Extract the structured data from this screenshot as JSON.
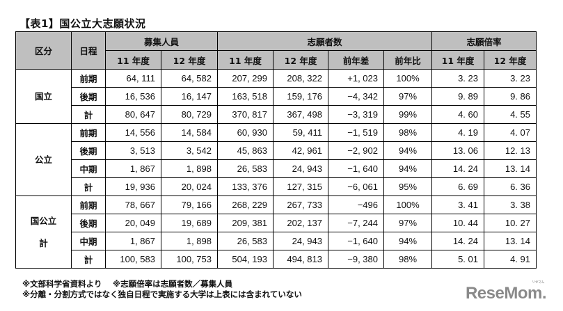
{
  "title": "【表1】国公立大志願状況",
  "table": {
    "headers": {
      "category": "区分",
      "schedule": "日程",
      "recruit": "募集人員",
      "applicants": "志願者数",
      "ratio": "志願倍率",
      "sub": {
        "recruit": [
          "11 年度",
          "12 年度"
        ],
        "applicants": [
          "11 年度",
          "12 年度",
          "前年差",
          "前年比"
        ],
        "ratio": [
          "11 年度",
          "12 年度"
        ]
      }
    },
    "groups": [
      {
        "category_lines": [
          "国立"
        ],
        "rows": [
          {
            "schedule": "前期",
            "r11": "64, 111",
            "r12": "64, 582",
            "a11": "207, 299",
            "a12": "208, 322",
            "diff": "+1, 023",
            "pct": "100%",
            "x11": "3. 23",
            "x12": "3. 23"
          },
          {
            "schedule": "後期",
            "r11": "16, 536",
            "r12": "16, 147",
            "a11": "163, 518",
            "a12": "159, 176",
            "diff": "−4, 342",
            "pct": "97%",
            "x11": "9. 89",
            "x12": "9. 86"
          },
          {
            "schedule": "計",
            "r11": "80, 647",
            "r12": "80, 729",
            "a11": "370, 817",
            "a12": "367, 498",
            "diff": "−3, 319",
            "pct": "99%",
            "x11": "4. 60",
            "x12": "4. 55"
          }
        ]
      },
      {
        "category_lines": [
          "公立"
        ],
        "rows": [
          {
            "schedule": "前期",
            "r11": "14, 556",
            "r12": "14, 584",
            "a11": "60, 930",
            "a12": "59, 411",
            "diff": "−1, 519",
            "pct": "98%",
            "x11": "4. 19",
            "x12": "4. 07"
          },
          {
            "schedule": "後期",
            "r11": "3, 513",
            "r12": "3, 542",
            "a11": "45, 863",
            "a12": "42, 961",
            "diff": "−2, 902",
            "pct": "94%",
            "x11": "13. 06",
            "x12": "12. 13"
          },
          {
            "schedule": "中期",
            "r11": "1, 867",
            "r12": "1, 898",
            "a11": "26, 583",
            "a12": "24, 943",
            "diff": "−1, 640",
            "pct": "94%",
            "x11": "14. 24",
            "x12": "13. 14"
          },
          {
            "schedule": "計",
            "r11": "19, 936",
            "r12": "20, 024",
            "a11": "133, 376",
            "a12": "127, 315",
            "diff": "−6, 061",
            "pct": "95%",
            "x11": "6. 69",
            "x12": "6. 36"
          }
        ]
      },
      {
        "category_lines": [
          "国公立",
          "計"
        ],
        "rows": [
          {
            "schedule": "前期",
            "r11": "78, 667",
            "r12": "79, 166",
            "a11": "268, 229",
            "a12": "267, 733",
            "diff": "−496",
            "pct": "100%",
            "x11": "3. 41",
            "x12": "3. 38"
          },
          {
            "schedule": "後期",
            "r11": "20, 049",
            "r12": "19, 689",
            "a11": "209, 381",
            "a12": "202, 137",
            "diff": "−7, 244",
            "pct": "97%",
            "x11": "10. 44",
            "x12": "10. 27"
          },
          {
            "schedule": "中期",
            "r11": "1, 867",
            "r12": "1, 898",
            "a11": "26, 583",
            "a12": "24, 943",
            "diff": "−1, 640",
            "pct": "94%",
            "x11": "14. 24",
            "x12": "13. 14"
          },
          {
            "schedule": "計",
            "r11": "100, 583",
            "r12": "100, 753",
            "a11": "504, 193",
            "a12": "494, 813",
            "diff": "−9, 380",
            "pct": "98%",
            "x11": "5. 01",
            "x12": "4. 91"
          }
        ]
      }
    ]
  },
  "notes": [
    "※文部科学省資料より　 ※志願倍率は志願者数／募集人員",
    "※分離・分割方式ではなく独自日程で実施する大学は上表には含まれていない"
  ],
  "logo": {
    "text": "ReseMom.",
    "ruby": "リセマム"
  },
  "colors": {
    "header_bg": "#bfbfbf",
    "logo": "#8a8a8a"
  }
}
